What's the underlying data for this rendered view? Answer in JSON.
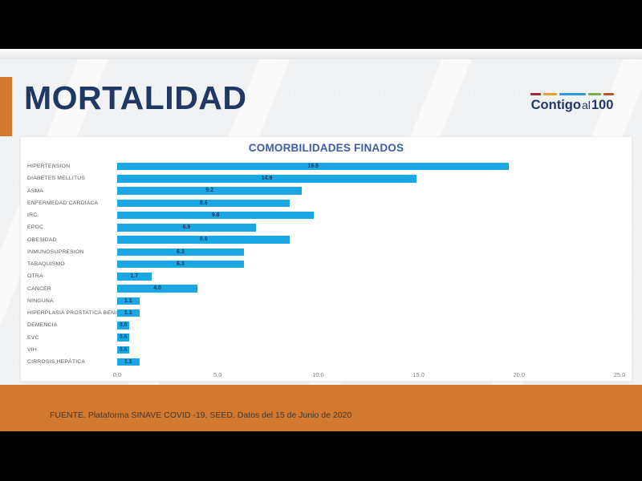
{
  "slide": {
    "title": "MORTALIDAD",
    "footer": "FUENTE. Plataforma SINAVE COVID -19, SEED. Datos del 15 de Junio de 2020"
  },
  "logo": {
    "word_main": "Contigo",
    "word_mid": "al",
    "word_num": "100",
    "dash_colors": [
      "#9C2F33",
      "#DFA32E",
      "#2B9CD8",
      "#76B041",
      "#C0532F"
    ]
  },
  "colors": {
    "bar_blue": "#1BA7E3",
    "accent_orange": "#D3782F",
    "title_navy": "#1F3864",
    "chart_title_blue": "#3B5EA9",
    "slide_bg": "#F1F2F4"
  },
  "chart_data": {
    "type": "bar",
    "orientation": "horizontal",
    "title": "COMORBILIDADES FINADOS",
    "categories": [
      "HIPERTENSION",
      "DIABETES MELLITUS",
      "ASMA",
      "ENFERMEDAD CARDIACA",
      "IRC",
      "EPOC",
      "OBESIDAD",
      "INMUNOSUPRESION",
      "TABAQUISMO",
      "OTRA",
      "CANCER",
      "NINGUNA",
      "HIPERPLASIA PROSTATICA BENIGNA",
      "DEMENCIA",
      "EVC",
      "VIH",
      "CIRROSIS HEPÁTICA"
    ],
    "values": [
      19.5,
      14.9,
      9.2,
      8.6,
      9.8,
      6.9,
      8.6,
      6.3,
      6.3,
      1.7,
      4.0,
      1.1,
      1.1,
      0.6,
      0.6,
      0.6,
      1.1
    ],
    "xlabel": "",
    "ylabel": "",
    "xlim": [
      0,
      25
    ],
    "xticks": [
      0.0,
      5.0,
      10.0,
      15.0,
      20.0,
      25.0
    ],
    "grid": false,
    "legend": false,
    "value_labels": "inside-center",
    "bar_color": "#1BA7E3"
  }
}
